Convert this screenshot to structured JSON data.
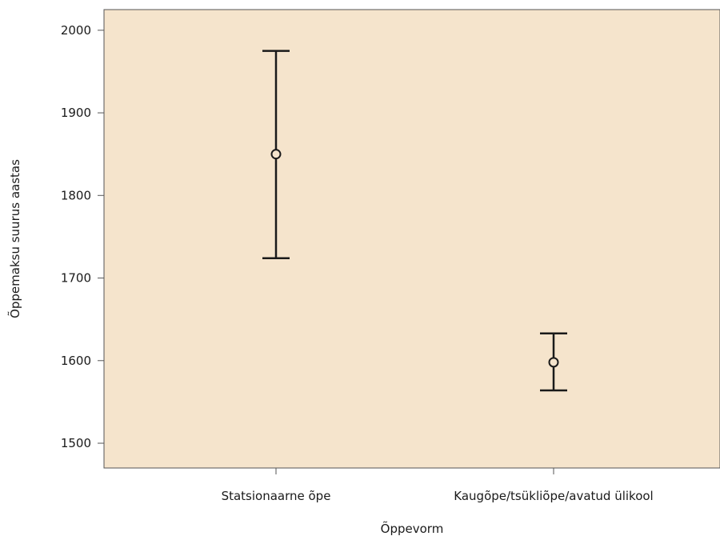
{
  "chart_data": {
    "type": "errorbar",
    "xlabel": "Õppevorm",
    "ylabel": "Õppemaksu suurus aastas",
    "categories": [
      "Statsionaarne õpe",
      "Kaugõpe/tsükliõpe/avatud ülikool"
    ],
    "points": [
      {
        "category": "Statsionaarne õpe",
        "mean": 1850,
        "lower": 1724,
        "upper": 1975
      },
      {
        "category": "Kaugõpe/tsükliõpe/avatud ülikool",
        "mean": 1598,
        "lower": 1564,
        "upper": 1633
      }
    ],
    "yticks": [
      1500,
      1600,
      1700,
      1800,
      1900,
      2000
    ],
    "ylim": [
      1470,
      2025
    ],
    "grid": false,
    "colors": {
      "plot_background": "#f5e4cc",
      "marks": "#1a1a1a",
      "axis": "#555555"
    }
  }
}
